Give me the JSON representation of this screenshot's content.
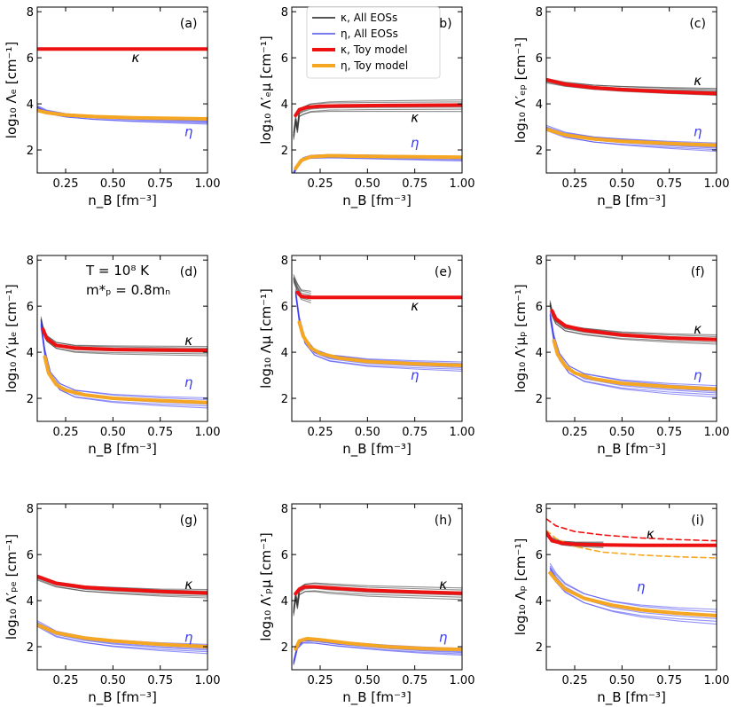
{
  "figure": {
    "legend": [
      {
        "label": "κ, All EOSs",
        "color": "#555555",
        "width": 2
      },
      {
        "label": "η, All EOSs",
        "color": "#7b7bf0",
        "width": 2
      },
      {
        "label": "κ, Toy model",
        "color": "#ee1111",
        "width": 4
      },
      {
        "label": "η, Toy model",
        "color": "#f5a623",
        "width": 4
      }
    ],
    "inset_text": [
      "T = 10⁸ K",
      "m*ₚ = 0.8mₙ"
    ],
    "colors": {
      "kappa_all": "#333333",
      "eta_all": "#3a3af2",
      "kappa_toy": "#ee1111",
      "eta_toy": "#f5a623"
    }
  },
  "chart_data": [
    {
      "id": "a",
      "type": "line",
      "panel_label": "(a)",
      "ylabel": "log₁₀ Λₑ [cm⁻¹]",
      "xlabel": "n_B [fm⁻³]",
      "xlim": [
        0.1,
        1.0
      ],
      "ylim": [
        1,
        8.2
      ],
      "xticks": [
        "0.25",
        "0.50",
        "0.75",
        "1.00"
      ],
      "yticks": [
        "2",
        "4",
        "6",
        "8"
      ],
      "kappa_label": "κ",
      "eta_label": "η",
      "series": [
        {
          "name": "κ, Toy model",
          "x": [
            0.1,
            0.3,
            0.6,
            1.0
          ],
          "y": [
            6.38,
            6.38,
            6.38,
            6.38
          ]
        },
        {
          "name": "η, Toy model",
          "x": [
            0.1,
            0.15,
            0.25,
            0.4,
            0.6,
            0.8,
            1.0
          ],
          "y": [
            3.72,
            3.62,
            3.52,
            3.45,
            3.4,
            3.37,
            3.35
          ]
        },
        {
          "name": "η, All EOSs",
          "x": [
            0.1,
            0.15,
            0.25,
            0.4,
            0.6,
            0.8,
            1.0
          ],
          "y": [
            3.85,
            3.65,
            3.5,
            3.4,
            3.33,
            3.28,
            3.24
          ],
          "spread": 0.12
        }
      ]
    },
    {
      "id": "b",
      "type": "line",
      "panel_label": "(b)",
      "ylabel": "log₁₀ Λ′ₑμ [cm⁻¹]",
      "xlabel": "n_B [fm⁻³]",
      "xlim": [
        0.1,
        1.0
      ],
      "ylim": [
        1,
        8.2
      ],
      "xticks": [
        "0.25",
        "0.50",
        "0.75",
        "1.00"
      ],
      "yticks": [
        "2",
        "4",
        "6",
        "8"
      ],
      "kappa_label": "κ",
      "eta_label": "η",
      "series": [
        {
          "name": "κ, Toy model",
          "x": [
            0.12,
            0.14,
            0.18,
            0.25,
            0.4,
            0.6,
            1.0
          ],
          "y": [
            3.5,
            3.75,
            3.85,
            3.9,
            3.92,
            3.93,
            3.95
          ]
        },
        {
          "name": "κ, All EOSs",
          "x": [
            0.11,
            0.12,
            0.13,
            0.14,
            0.16,
            0.2,
            0.3,
            0.5,
            1.0
          ],
          "y": [
            2.6,
            3.3,
            2.9,
            3.6,
            3.7,
            3.82,
            3.88,
            3.9,
            3.92
          ],
          "spread": 0.25
        },
        {
          "name": "η, Toy model",
          "x": [
            0.12,
            0.15,
            0.2,
            0.3,
            0.5,
            0.75,
            1.0
          ],
          "y": [
            1.2,
            1.55,
            1.7,
            1.75,
            1.72,
            1.7,
            1.68
          ]
        },
        {
          "name": "η, All EOSs",
          "x": [
            0.11,
            0.13,
            0.16,
            0.2,
            0.3,
            0.5,
            0.75,
            1.0
          ],
          "y": [
            1.0,
            1.3,
            1.6,
            1.7,
            1.73,
            1.7,
            1.66,
            1.62
          ],
          "spread": 0.1
        }
      ]
    },
    {
      "id": "c",
      "type": "line",
      "panel_label": "(c)",
      "ylabel": "log₁₀ Λ′ₑₚ [cm⁻¹]",
      "xlabel": "n_B [fm⁻³]",
      "xlim": [
        0.1,
        1.0
      ],
      "ylim": [
        1,
        8.2
      ],
      "xticks": [
        "0.25",
        "0.50",
        "0.75",
        "1.00"
      ],
      "yticks": [
        "2",
        "4",
        "6",
        "8"
      ],
      "kappa_label": "κ",
      "eta_label": "η",
      "series": [
        {
          "name": "κ, Toy model",
          "x": [
            0.1,
            0.2,
            0.35,
            0.5,
            0.75,
            1.0
          ],
          "y": [
            5.05,
            4.85,
            4.7,
            4.62,
            4.52,
            4.45
          ]
        },
        {
          "name": "κ, All EOSs",
          "x": [
            0.1,
            0.2,
            0.35,
            0.5,
            0.75,
            1.0
          ],
          "y": [
            5.0,
            4.85,
            4.72,
            4.65,
            4.58,
            4.52
          ],
          "spread": 0.15
        },
        {
          "name": "η, Toy model",
          "x": [
            0.1,
            0.2,
            0.35,
            0.5,
            0.75,
            1.0
          ],
          "y": [
            2.9,
            2.65,
            2.48,
            2.38,
            2.28,
            2.2
          ]
        },
        {
          "name": "η, All EOSs",
          "x": [
            0.1,
            0.2,
            0.35,
            0.5,
            0.75,
            1.0
          ],
          "y": [
            2.95,
            2.65,
            2.45,
            2.35,
            2.22,
            2.12
          ],
          "spread": 0.18
        }
      ]
    },
    {
      "id": "d",
      "type": "line",
      "panel_label": "(d)",
      "ylabel": "log₁₀ Λ′μₑ [cm⁻¹]",
      "xlabel": "n_B [fm⁻³]",
      "xlim": [
        0.1,
        1.0
      ],
      "ylim": [
        1,
        8.2
      ],
      "xticks": [
        "0.25",
        "0.50",
        "0.75",
        "1.00"
      ],
      "yticks": [
        "2",
        "4",
        "6",
        "8"
      ],
      "kappa_label": "κ",
      "eta_label": "η",
      "series": [
        {
          "name": "κ, Toy model",
          "x": [
            0.13,
            0.15,
            0.2,
            0.3,
            0.5,
            0.75,
            1.0
          ],
          "y": [
            5.0,
            4.6,
            4.3,
            4.18,
            4.12,
            4.1,
            4.08
          ]
        },
        {
          "name": "κ, All EOSs",
          "x": [
            0.12,
            0.13,
            0.15,
            0.2,
            0.3,
            0.5,
            1.0
          ],
          "y": [
            5.4,
            5.0,
            4.6,
            4.3,
            4.15,
            4.1,
            4.05
          ],
          "spread": 0.2
        },
        {
          "name": "η, Toy model",
          "x": [
            0.14,
            0.16,
            0.2,
            0.25,
            0.35,
            0.5,
            0.75,
            1.0
          ],
          "y": [
            3.8,
            3.1,
            2.6,
            2.35,
            2.15,
            2.0,
            1.9,
            1.82
          ]
        },
        {
          "name": "η, All EOSs",
          "x": [
            0.12,
            0.14,
            0.17,
            0.22,
            0.3,
            0.5,
            0.75,
            1.0
          ],
          "y": [
            5.2,
            4.0,
            3.0,
            2.5,
            2.2,
            2.0,
            1.88,
            1.8
          ],
          "spread": 0.22
        }
      ]
    },
    {
      "id": "e",
      "type": "line",
      "panel_label": "(e)",
      "ylabel": "log₁₀ Λμ [cm⁻¹]",
      "xlabel": "n_B [fm⁻³]",
      "xlim": [
        0.1,
        1.0
      ],
      "ylim": [
        1,
        8.2
      ],
      "xticks": [
        "0.25",
        "0.50",
        "0.75",
        "1.00"
      ],
      "yticks": [
        "2",
        "4",
        "6",
        "8"
      ],
      "kappa_label": "κ",
      "eta_label": "η",
      "series": [
        {
          "name": "κ, Toy model",
          "x": [
            0.13,
            0.15,
            0.2,
            0.4,
            0.7,
            1.0
          ],
          "y": [
            6.6,
            6.42,
            6.38,
            6.38,
            6.38,
            6.38
          ]
        },
        {
          "name": "κ, All EOSs",
          "x": [
            0.11,
            0.12,
            0.13,
            0.15,
            0.2
          ],
          "y": [
            7.2,
            7.0,
            6.8,
            6.5,
            6.4
          ],
          "spread": 0.25
        },
        {
          "name": "η, Toy model",
          "x": [
            0.14,
            0.16,
            0.2,
            0.25,
            0.35,
            0.5,
            0.75,
            1.0
          ],
          "y": [
            5.3,
            4.7,
            4.2,
            3.95,
            3.75,
            3.6,
            3.5,
            3.43
          ]
        },
        {
          "name": "η, All EOSs",
          "x": [
            0.12,
            0.14,
            0.17,
            0.22,
            0.3,
            0.5,
            0.75,
            1.0
          ],
          "y": [
            6.6,
            5.4,
            4.5,
            4.0,
            3.75,
            3.55,
            3.45,
            3.38
          ],
          "spread": 0.2
        }
      ]
    },
    {
      "id": "f",
      "type": "line",
      "panel_label": "(f)",
      "ylabel": "log₁₀ Λ′μₚ [cm⁻¹]",
      "xlabel": "n_B [fm⁻³]",
      "xlim": [
        0.1,
        1.0
      ],
      "ylim": [
        1,
        8.2
      ],
      "xticks": [
        "0.25",
        "0.50",
        "0.75",
        "1.00"
      ],
      "yticks": [
        "2",
        "4",
        "6",
        "8"
      ],
      "kappa_label": "κ",
      "eta_label": "η",
      "series": [
        {
          "name": "κ, Toy model",
          "x": [
            0.13,
            0.15,
            0.2,
            0.3,
            0.5,
            0.75,
            1.0
          ],
          "y": [
            5.8,
            5.45,
            5.15,
            4.95,
            4.75,
            4.62,
            4.55
          ]
        },
        {
          "name": "κ, All EOSs",
          "x": [
            0.12,
            0.13,
            0.15,
            0.2,
            0.3,
            0.5,
            0.75,
            1.0
          ],
          "y": [
            6.1,
            5.7,
            5.35,
            5.05,
            4.9,
            4.72,
            4.62,
            4.55
          ],
          "spread": 0.2
        },
        {
          "name": "η, Toy model",
          "x": [
            0.14,
            0.16,
            0.2,
            0.25,
            0.35,
            0.5,
            0.75,
            1.0
          ],
          "y": [
            4.5,
            3.9,
            3.4,
            3.1,
            2.85,
            2.65,
            2.5,
            2.4
          ]
        },
        {
          "name": "η, All EOSs",
          "x": [
            0.12,
            0.14,
            0.17,
            0.22,
            0.3,
            0.5,
            0.75,
            1.0
          ],
          "y": [
            5.6,
            4.6,
            3.8,
            3.25,
            2.9,
            2.6,
            2.42,
            2.3
          ],
          "spread": 0.25
        }
      ]
    },
    {
      "id": "g",
      "type": "line",
      "panel_label": "(g)",
      "ylabel": "log₁₀ Λ′ₚₑ [cm⁻¹]",
      "xlabel": "n_B [fm⁻³]",
      "xlim": [
        0.1,
        1.0
      ],
      "ylim": [
        1,
        8.2
      ],
      "xticks": [
        "0.25",
        "0.50",
        "0.75",
        "1.00"
      ],
      "yticks": [
        "2",
        "4",
        "6",
        "8"
      ],
      "kappa_label": "κ",
      "eta_label": "η",
      "series": [
        {
          "name": "κ, Toy model",
          "x": [
            0.1,
            0.2,
            0.35,
            0.5,
            0.75,
            1.0
          ],
          "y": [
            5.05,
            4.75,
            4.58,
            4.5,
            4.4,
            4.33
          ]
        },
        {
          "name": "κ, All EOSs",
          "x": [
            0.1,
            0.2,
            0.35,
            0.5,
            0.75,
            1.0
          ],
          "y": [
            5.0,
            4.7,
            4.52,
            4.45,
            4.35,
            4.3
          ],
          "spread": 0.18
        },
        {
          "name": "η, Toy model",
          "x": [
            0.1,
            0.2,
            0.35,
            0.5,
            0.75,
            1.0
          ],
          "y": [
            2.95,
            2.6,
            2.38,
            2.25,
            2.1,
            2.0
          ]
        },
        {
          "name": "η, All EOSs",
          "x": [
            0.1,
            0.2,
            0.35,
            0.5,
            0.75,
            1.0
          ],
          "y": [
            3.0,
            2.55,
            2.3,
            2.15,
            2.0,
            1.9
          ],
          "spread": 0.2
        }
      ]
    },
    {
      "id": "h",
      "type": "line",
      "panel_label": "(h)",
      "ylabel": "log₁₀ Λ′ₚμ [cm⁻¹]",
      "xlabel": "n_B [fm⁻³]",
      "xlim": [
        0.1,
        1.0
      ],
      "ylim": [
        1,
        8.2
      ],
      "xticks": [
        "0.25",
        "0.50",
        "0.75",
        "1.00"
      ],
      "yticks": [
        "2",
        "4",
        "6",
        "8"
      ],
      "kappa_label": "κ",
      "eta_label": "η",
      "series": [
        {
          "name": "κ, Toy model",
          "x": [
            0.12,
            0.14,
            0.17,
            0.22,
            0.3,
            0.5,
            0.75,
            1.0
          ],
          "y": [
            4.3,
            4.5,
            4.6,
            4.6,
            4.55,
            4.45,
            4.38,
            4.32
          ]
        },
        {
          "name": "κ, All EOSs",
          "x": [
            0.11,
            0.12,
            0.13,
            0.14,
            0.17,
            0.22,
            0.3,
            0.5,
            1.0
          ],
          "y": [
            3.5,
            4.2,
            3.8,
            4.4,
            4.55,
            4.58,
            4.52,
            4.42,
            4.3
          ],
          "spread": 0.25
        },
        {
          "name": "η, Toy model",
          "x": [
            0.12,
            0.14,
            0.18,
            0.25,
            0.4,
            0.6,
            0.8,
            1.0
          ],
          "y": [
            1.9,
            2.25,
            2.35,
            2.3,
            2.15,
            2.0,
            1.92,
            1.88
          ]
        },
        {
          "name": "η, All EOSs",
          "x": [
            0.11,
            0.13,
            0.16,
            0.22,
            0.35,
            0.6,
            0.8,
            1.0
          ],
          "y": [
            1.3,
            2.0,
            2.25,
            2.25,
            2.12,
            1.95,
            1.85,
            1.78
          ],
          "spread": 0.15
        }
      ]
    },
    {
      "id": "i",
      "type": "line",
      "panel_label": "(i)",
      "ylabel": "log₁₀ Λₚ [cm⁻¹]",
      "xlabel": "n_B [fm⁻³]",
      "xlim": [
        0.1,
        1.0
      ],
      "ylim": [
        1,
        8.2
      ],
      "xticks": [
        "0.25",
        "0.50",
        "0.75",
        "1.00"
      ],
      "yticks": [
        "2",
        "4",
        "6",
        "8"
      ],
      "kappa_label": "κ",
      "eta_label": "η",
      "series": [
        {
          "name": "κ, Toy model",
          "x": [
            0.1,
            0.13,
            0.18,
            0.25,
            0.4,
            0.6,
            1.0
          ],
          "y": [
            6.95,
            6.6,
            6.5,
            6.45,
            6.42,
            6.4,
            6.4
          ]
        },
        {
          "name": "κ, All EOSs",
          "x": [
            0.1,
            0.13,
            0.18,
            0.25,
            0.4
          ],
          "y": [
            6.9,
            6.65,
            6.5,
            6.45,
            6.42
          ],
          "spread": 0.12
        },
        {
          "name": "κ, dashed",
          "x": [
            0.1,
            0.15,
            0.25,
            0.4,
            0.6,
            0.8,
            1.0
          ],
          "y": [
            7.55,
            7.25,
            7.0,
            6.85,
            6.72,
            6.65,
            6.6
          ],
          "dashed": true
        },
        {
          "name": "η, dashed",
          "x": [
            0.1,
            0.15,
            0.25,
            0.4,
            0.6,
            0.8,
            1.0
          ],
          "y": [
            7.05,
            6.7,
            6.35,
            6.1,
            5.98,
            5.9,
            5.85
          ],
          "dashed": true
        },
        {
          "name": "η, Toy model",
          "x": [
            0.12,
            0.15,
            0.2,
            0.3,
            0.45,
            0.6,
            0.8,
            1.0
          ],
          "y": [
            5.2,
            4.9,
            4.5,
            4.1,
            3.8,
            3.6,
            3.45,
            3.35
          ]
        },
        {
          "name": "η, All EOSs",
          "x": [
            0.12,
            0.15,
            0.2,
            0.3,
            0.45,
            0.6,
            0.8,
            1.0
          ],
          "y": [
            5.4,
            5.0,
            4.55,
            4.1,
            3.75,
            3.55,
            3.4,
            3.3
          ],
          "spread": 0.32
        }
      ]
    }
  ]
}
